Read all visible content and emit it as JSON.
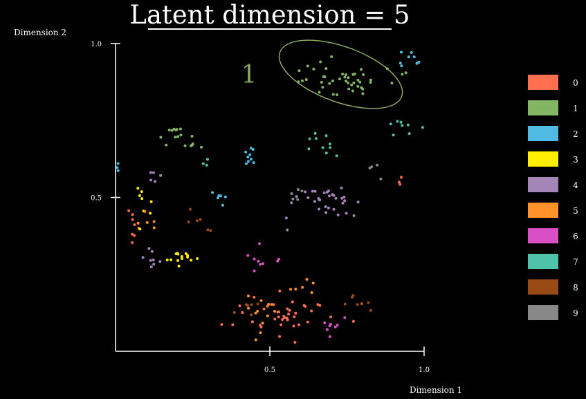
{
  "chart_data": {
    "type": "scatter",
    "title": "Latent dimension = 5",
    "xlabel": "Dimension 1",
    "ylabel": "Dimension 2",
    "xlim": [
      0,
      1.0
    ],
    "ylim": [
      0,
      1.0
    ],
    "x_ticks": [
      0.5,
      1.0
    ],
    "x_tick_labels": [
      "0.5",
      "1.0"
    ],
    "y_ticks": [
      0.5,
      1.0
    ],
    "y_tick_labels": [
      "0.5",
      "1.0"
    ],
    "grid": false,
    "legend_position": "right",
    "annotation": {
      "text": "1",
      "color": "#8aaa5e",
      "ellipse_center": [
        0.73,
        0.9
      ],
      "ellipse_radii": [
        0.21,
        0.09
      ],
      "ellipse_angle_deg": 20
    },
    "series": [
      {
        "name": "0",
        "color": "#ff6e4f",
        "clusters": [
          {
            "center": [
              0.55,
              0.12
            ],
            "spread": [
              0.13,
              0.06
            ],
            "n": 40
          },
          {
            "center": [
              0.06,
              0.4
            ],
            "spread": [
              0.03,
              0.06
            ],
            "n": 8
          },
          {
            "center": [
              0.92,
              0.55
            ],
            "spread": [
              0.02,
              0.03
            ],
            "n": 3
          }
        ]
      },
      {
        "name": "1",
        "color": "#84b562",
        "clusters": [
          {
            "center": [
              0.73,
              0.89
            ],
            "spread": [
              0.14,
              0.05
            ],
            "n": 45
          },
          {
            "center": [
              0.2,
              0.72
            ],
            "spread": [
              0.05,
              0.03
            ],
            "n": 12
          },
          {
            "center": [
              0.26,
              0.67
            ],
            "spread": [
              0.03,
              0.02
            ],
            "n": 5
          }
        ]
      },
      {
        "name": "2",
        "color": "#4fbbe3",
        "clusters": [
          {
            "center": [
              0.95,
              0.95
            ],
            "spread": [
              0.02,
              0.02
            ],
            "n": 8
          },
          {
            "center": [
              0.44,
              0.63
            ],
            "spread": [
              0.02,
              0.03
            ],
            "n": 9
          },
          {
            "center": [
              0.34,
              0.5
            ],
            "spread": [
              0.02,
              0.02
            ],
            "n": 6
          },
          {
            "center": [
              0.01,
              0.59
            ],
            "spread": [
              0.01,
              0.02
            ],
            "n": 3
          }
        ]
      },
      {
        "name": "3",
        "color": "#ffee00",
        "clusters": [
          {
            "center": [
              0.22,
              0.3
            ],
            "spread": [
              0.06,
              0.05
            ],
            "n": 14
          },
          {
            "center": [
              0.09,
              0.49
            ],
            "spread": [
              0.03,
              0.05
            ],
            "n": 8
          }
        ]
      },
      {
        "name": "4",
        "color": "#a584b8",
        "clusters": [
          {
            "center": [
              0.67,
              0.48
            ],
            "spread": [
              0.1,
              0.05
            ],
            "n": 32
          },
          {
            "center": [
              0.12,
              0.31
            ],
            "spread": [
              0.03,
              0.03
            ],
            "n": 8
          },
          {
            "center": [
              0.12,
              0.57
            ],
            "spread": [
              0.03,
              0.02
            ],
            "n": 5
          }
        ]
      },
      {
        "name": "5",
        "color": "#ff9229",
        "clusters": [
          {
            "center": [
              0.48,
              0.13
            ],
            "spread": [
              0.05,
              0.05
            ],
            "n": 12
          },
          {
            "center": [
              0.6,
              0.2
            ],
            "spread": [
              0.05,
              0.03
            ],
            "n": 6
          },
          {
            "center": [
              0.1,
              0.42
            ],
            "spread": [
              0.03,
              0.03
            ],
            "n": 5
          }
        ]
      },
      {
        "name": "6",
        "color": "#d94fc6",
        "clusters": [
          {
            "center": [
              0.5,
              0.3
            ],
            "spread": [
              0.05,
              0.04
            ],
            "n": 9
          },
          {
            "center": [
              0.7,
              0.08
            ],
            "spread": [
              0.06,
              0.03
            ],
            "n": 8
          }
        ]
      },
      {
        "name": "7",
        "color": "#4fc2aa",
        "clusters": [
          {
            "center": [
              0.66,
              0.68
            ],
            "spread": [
              0.05,
              0.05
            ],
            "n": 10
          },
          {
            "center": [
              0.93,
              0.72
            ],
            "spread": [
              0.04,
              0.03
            ],
            "n": 8
          },
          {
            "center": [
              0.28,
              0.63
            ],
            "spread": [
              0.02,
              0.02
            ],
            "n": 3
          }
        ]
      },
      {
        "name": "8",
        "color": "#9a4a14",
        "clusters": [
          {
            "center": [
              0.78,
              0.14
            ],
            "spread": [
              0.05,
              0.04
            ],
            "n": 8
          },
          {
            "center": [
              0.42,
              0.14
            ],
            "spread": [
              0.04,
              0.03
            ],
            "n": 6
          },
          {
            "center": [
              0.27,
              0.41
            ],
            "spread": [
              0.04,
              0.04
            ],
            "n": 6
          }
        ]
      },
      {
        "name": "9",
        "color": "#888888",
        "clusters": [
          {
            "center": [
              0.58,
              0.51
            ],
            "spread": [
              0.03,
              0.03
            ],
            "n": 5
          },
          {
            "center": [
              0.84,
              0.59
            ],
            "spread": [
              0.03,
              0.03
            ],
            "n": 4
          }
        ]
      }
    ]
  }
}
